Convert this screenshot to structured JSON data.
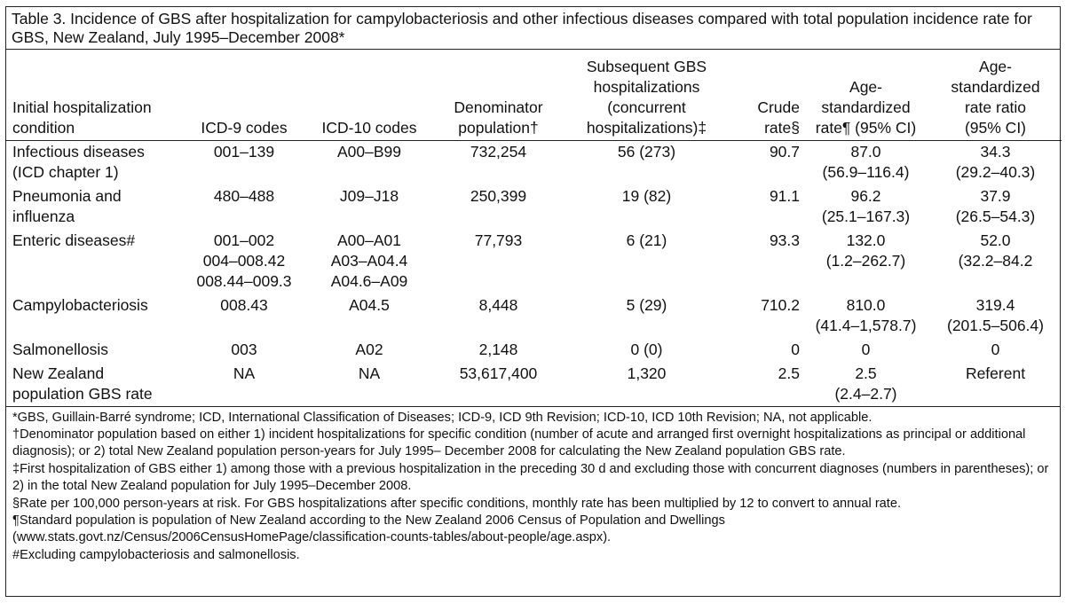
{
  "title": "Table 3. Incidence of GBS after hospitalization for campylobacteriosis and other infectious diseases compared with total population incidence rate for GBS, New Zealand, July 1995–December 2008*",
  "headers": [
    [
      "Initial hospitalization",
      "condition"
    ],
    [
      "ICD-9 codes"
    ],
    [
      "ICD-10 codes"
    ],
    [
      "Denominator",
      "population†"
    ],
    [
      "Subsequent GBS",
      "hospitalizations",
      "(concurrent",
      "hospitalizations)‡"
    ],
    [
      "Crude",
      "rate§"
    ],
    [
      "Age-",
      "standardized",
      "rate¶ (95% CI)"
    ],
    [
      "Age-",
      "standardized",
      "rate ratio",
      "(95% CI)"
    ]
  ],
  "rows": [
    {
      "condition": [
        "Infectious diseases",
        "(ICD chapter 1)"
      ],
      "icd9": [
        "001–139"
      ],
      "icd10": [
        "A00–B99"
      ],
      "denominator": "732,254",
      "subsequent": "56 (273)",
      "crude": "90.7",
      "age_rate": [
        "87.0",
        "(56.9–116.4)"
      ],
      "ratio": [
        "34.3",
        "(29.2–40.3)"
      ]
    },
    {
      "condition": [
        "Pneumonia and",
        "influenza"
      ],
      "icd9": [
        "480–488"
      ],
      "icd10": [
        "J09–J18"
      ],
      "denominator": "250,399",
      "subsequent": "19 (82)",
      "crude": "91.1",
      "age_rate": [
        "96.2",
        "(25.1–167.3)"
      ],
      "ratio": [
        "37.9",
        "(26.5–54.3)"
      ]
    },
    {
      "condition": [
        "Enteric diseases#"
      ],
      "icd9": [
        "001–002",
        "004–008.42",
        "008.44–009.3"
      ],
      "icd10": [
        "A00–A01",
        "A03–A04.4",
        "A04.6–A09"
      ],
      "denominator": "77,793",
      "subsequent": "6 (21)",
      "crude": "93.3",
      "age_rate": [
        "132.0",
        "(1.2–262.7)"
      ],
      "ratio": [
        "52.0",
        "(32.2–84.2"
      ]
    },
    {
      "condition": [
        "Campylobacteriosis"
      ],
      "icd9": [
        "008.43"
      ],
      "icd10": [
        "A04.5"
      ],
      "denominator": "8,448",
      "subsequent": "5 (29)",
      "crude": "710.2",
      "age_rate": [
        "810.0",
        "(41.4–1,578.7)"
      ],
      "ratio": [
        "319.4",
        "(201.5–506.4)"
      ]
    },
    {
      "condition": [
        "Salmonellosis"
      ],
      "icd9": [
        "003"
      ],
      "icd10": [
        "A02"
      ],
      "denominator": "2,148",
      "subsequent": "0 (0)",
      "crude": "0",
      "age_rate": [
        "0"
      ],
      "ratio": [
        "0"
      ]
    },
    {
      "condition": [
        "New Zealand",
        "population GBS rate"
      ],
      "icd9": [
        "NA"
      ],
      "icd10": [
        "NA"
      ],
      "denominator": "53,617,400",
      "subsequent": "1,320",
      "crude": "2.5",
      "age_rate": [
        "2.5",
        "(2.4–2.7)"
      ],
      "ratio": [
        "Referent"
      ]
    }
  ],
  "footnotes": [
    "*GBS, Guillain-Barré syndrome; ICD, International Classification of Diseases; ICD-9, ICD 9th Revision; ICD-10, ICD 10th Revision; NA, not applicable.",
    "†Denominator population based on either 1) incident hospitalizations for specific condition (number of acute and arranged first overnight hospitalizations as principal or additional diagnosis); or 2) total New Zealand population person-years for July 1995– December 2008 for calculating the New Zealand population GBS rate.",
    "‡First hospitalization of GBS either 1) among those with a previous hospitalization in the preceding 30 d and excluding those with concurrent diagnoses (numbers in parentheses); or 2) in the total New Zealand population for July 1995–December 2008.",
    "§Rate per 100,000 person-years at risk. For GBS hospitalizations after specific conditions, monthly rate has been multiplied by 12 to convert to annual rate.",
    "¶Standard population is population of New Zealand according to the New Zealand 2006 Census of Population and Dwellings (www.stats.govt.nz/Census/2006CensusHomePage/classification-counts-tables/about-people/age.aspx).",
    "#Excluding campylobacteriosis and salmonellosis."
  ]
}
